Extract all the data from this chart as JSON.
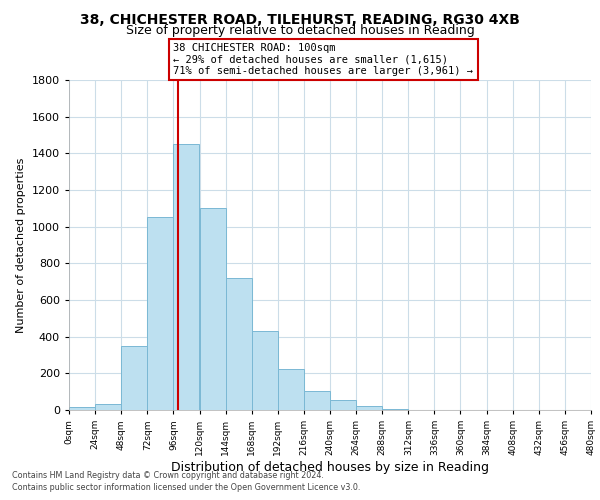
{
  "title_line1": "38, CHICHESTER ROAD, TILEHURST, READING, RG30 4XB",
  "title_line2": "Size of property relative to detached houses in Reading",
  "xlabel": "Distribution of detached houses by size in Reading",
  "ylabel": "Number of detached properties",
  "bar_color": "#bde0f0",
  "bar_edge_color": "#7ab8d4",
  "bin_edges": [
    0,
    24,
    48,
    72,
    96,
    120,
    144,
    168,
    192,
    216,
    240,
    264,
    288,
    312,
    336,
    360,
    384,
    408,
    432,
    456,
    480
  ],
  "bar_heights": [
    15,
    35,
    350,
    1050,
    1450,
    1100,
    720,
    430,
    225,
    105,
    55,
    20,
    5,
    0,
    0,
    0,
    0,
    0,
    0,
    0
  ],
  "property_line_x": 100,
  "property_line_color": "#cc0000",
  "annotation_text": "38 CHICHESTER ROAD: 100sqm\n← 29% of detached houses are smaller (1,615)\n71% of semi-detached houses are larger (3,961) →",
  "annotation_box_color": "#ffffff",
  "annotation_box_edge": "#cc0000",
  "ylim": [
    0,
    1800
  ],
  "yticks": [
    0,
    200,
    400,
    600,
    800,
    1000,
    1200,
    1400,
    1600,
    1800
  ],
  "xtick_labels": [
    "0sqm",
    "24sqm",
    "48sqm",
    "72sqm",
    "96sqm",
    "120sqm",
    "144sqm",
    "168sqm",
    "192sqm",
    "216sqm",
    "240sqm",
    "264sqm",
    "288sqm",
    "312sqm",
    "336sqm",
    "360sqm",
    "384sqm",
    "408sqm",
    "432sqm",
    "456sqm",
    "480sqm"
  ],
  "footer_line1": "Contains HM Land Registry data © Crown copyright and database right 2024.",
  "footer_line2": "Contains public sector information licensed under the Open Government Licence v3.0.",
  "background_color": "#ffffff",
  "grid_color": "#ccdde8"
}
